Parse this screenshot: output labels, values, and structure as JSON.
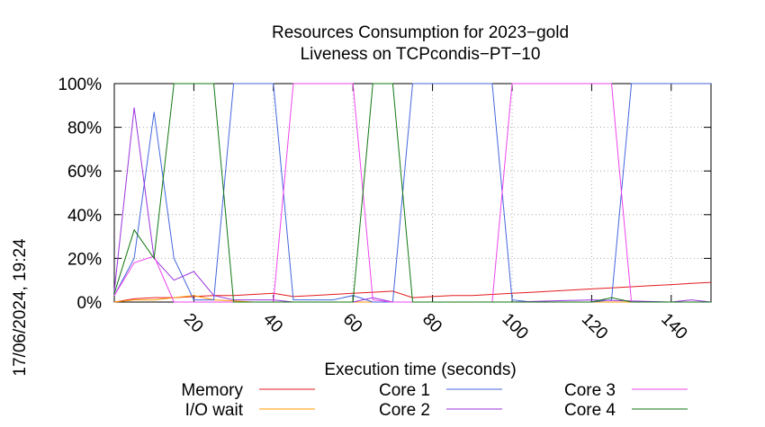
{
  "timestamp": "17/06/2024, 19:24",
  "chart_data": {
    "type": "line",
    "title": "Resources Consumption for 2023−gold",
    "subtitle": "Liveness on TCPcondis−PT−10",
    "xlabel": "Execution time (seconds)",
    "ylabel": "",
    "xlim": [
      0,
      150
    ],
    "ylim": [
      0,
      100
    ],
    "x_ticks": [
      20,
      40,
      60,
      80,
      100,
      120,
      140
    ],
    "y_ticks": [
      0,
      20,
      40,
      60,
      80,
      100
    ],
    "y_tick_labels": [
      "0%",
      "20%",
      "40%",
      "60%",
      "80%",
      "100%"
    ],
    "grid": true,
    "legend_position": "bottom",
    "series": [
      {
        "name": "Memory",
        "color": "#e41a1c",
        "points": [
          [
            0,
            0
          ],
          [
            5,
            1.5
          ],
          [
            10,
            2
          ],
          [
            15,
            2
          ],
          [
            20,
            2.5
          ],
          [
            25,
            3
          ],
          [
            30,
            3
          ],
          [
            35,
            3.5
          ],
          [
            40,
            4
          ],
          [
            45,
            2.5
          ],
          [
            50,
            3
          ],
          [
            55,
            3.5
          ],
          [
            60,
            4
          ],
          [
            65,
            4.5
          ],
          [
            70,
            5
          ],
          [
            75,
            2
          ],
          [
            80,
            2.5
          ],
          [
            85,
            3
          ],
          [
            90,
            3
          ],
          [
            95,
            3.5
          ],
          [
            100,
            4
          ],
          [
            105,
            4.5
          ],
          [
            110,
            5
          ],
          [
            115,
            5.5
          ],
          [
            120,
            6
          ],
          [
            125,
            6.5
          ],
          [
            130,
            7
          ],
          [
            135,
            7.5
          ],
          [
            140,
            8
          ],
          [
            145,
            8.5
          ],
          [
            150,
            9
          ]
        ]
      },
      {
        "name": "I/O wait",
        "color": "#ff9900",
        "points": [
          [
            0,
            0
          ],
          [
            5,
            1
          ],
          [
            10,
            1
          ],
          [
            15,
            2
          ],
          [
            20,
            3
          ],
          [
            25,
            1
          ],
          [
            30,
            0.5
          ],
          [
            35,
            0
          ],
          [
            40,
            0
          ],
          [
            60,
            0
          ],
          [
            80,
            0
          ],
          [
            100,
            0
          ],
          [
            120,
            0
          ],
          [
            150,
            0
          ]
        ]
      },
      {
        "name": "Core 1",
        "color": "#4466dd",
        "points": [
          [
            0,
            3
          ],
          [
            5,
            20
          ],
          [
            10,
            87
          ],
          [
            15,
            20
          ],
          [
            20,
            1
          ],
          [
            25,
            1
          ],
          [
            30,
            100
          ],
          [
            40,
            100
          ],
          [
            45,
            1
          ],
          [
            55,
            1
          ],
          [
            60,
            3
          ],
          [
            65,
            0
          ],
          [
            70,
            0
          ],
          [
            75,
            100
          ],
          [
            85,
            100
          ],
          [
            95,
            100
          ],
          [
            100,
            1
          ],
          [
            105,
            0
          ],
          [
            115,
            0
          ],
          [
            120,
            0
          ],
          [
            125,
            1
          ],
          [
            130,
            100
          ],
          [
            150,
            100
          ]
        ]
      },
      {
        "name": "Core 2",
        "color": "#9933dd",
        "points": [
          [
            0,
            5
          ],
          [
            5,
            89
          ],
          [
            10,
            20
          ],
          [
            15,
            10
          ],
          [
            20,
            14
          ],
          [
            25,
            3
          ],
          [
            30,
            1
          ],
          [
            40,
            1
          ],
          [
            45,
            0
          ],
          [
            60,
            0
          ],
          [
            65,
            2
          ],
          [
            70,
            0
          ],
          [
            80,
            0
          ],
          [
            100,
            0
          ],
          [
            120,
            1
          ],
          [
            140,
            0
          ],
          [
            145,
            1
          ],
          [
            150,
            0
          ]
        ]
      },
      {
        "name": "Core 3",
        "color": "#ee44ee",
        "points": [
          [
            0,
            3
          ],
          [
            5,
            18
          ],
          [
            10,
            21
          ],
          [
            15,
            0
          ],
          [
            20,
            0
          ],
          [
            30,
            0
          ],
          [
            40,
            0
          ],
          [
            45,
            100
          ],
          [
            60,
            100
          ],
          [
            65,
            1
          ],
          [
            70,
            0
          ],
          [
            75,
            0
          ],
          [
            95,
            0
          ],
          [
            100,
            100
          ],
          [
            115,
            100
          ],
          [
            125,
            100
          ],
          [
            130,
            0
          ],
          [
            150,
            0
          ]
        ]
      },
      {
        "name": "Core 4",
        "color": "#117711",
        "points": [
          [
            0,
            4
          ],
          [
            5,
            33
          ],
          [
            10,
            20
          ],
          [
            15,
            100
          ],
          [
            25,
            100
          ],
          [
            30,
            0
          ],
          [
            40,
            0
          ],
          [
            45,
            0
          ],
          [
            55,
            0
          ],
          [
            60,
            0
          ],
          [
            65,
            100
          ],
          [
            70,
            100
          ],
          [
            75,
            0
          ],
          [
            85,
            0
          ],
          [
            100,
            0
          ],
          [
            120,
            0
          ],
          [
            125,
            2
          ],
          [
            130,
            0
          ],
          [
            150,
            0
          ]
        ]
      }
    ]
  }
}
